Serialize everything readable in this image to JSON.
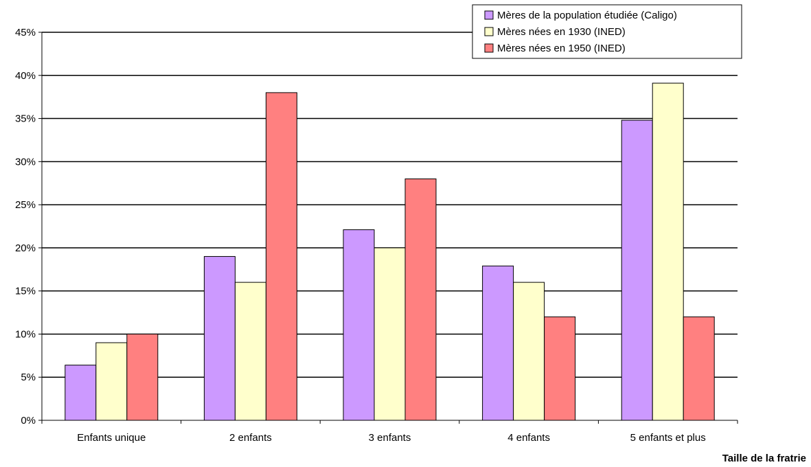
{
  "chart_data": {
    "type": "bar",
    "categories": [
      "Enfants unique",
      "2 enfants",
      "3 enfants",
      "4 enfants",
      "5 enfants et plus"
    ],
    "series": [
      {
        "name": "Mères de la population étudiée (Caligo)",
        "color": "#CC99FF",
        "values": [
          6.4,
          19.0,
          22.1,
          17.9,
          34.8
        ]
      },
      {
        "name": "Mères nées en 1930 (INED)",
        "color": "#FFFFCC",
        "values": [
          9.0,
          16.0,
          20.0,
          16.0,
          39.1
        ]
      },
      {
        "name": "Mères nées en 1950 (INED)",
        "color": "#FF8080",
        "values": [
          10.0,
          38.0,
          28.0,
          12.0,
          12.0
        ]
      }
    ],
    "y_ticks": [
      "0%",
      "5%",
      "10%",
      "15%",
      "20%",
      "25%",
      "30%",
      "35%",
      "40%",
      "45%"
    ],
    "ylim": [
      0,
      45
    ],
    "xlabel": "Taille de la fratrie",
    "ylabel": "",
    "title": "",
    "grid": true,
    "legend_position": "top-right"
  }
}
